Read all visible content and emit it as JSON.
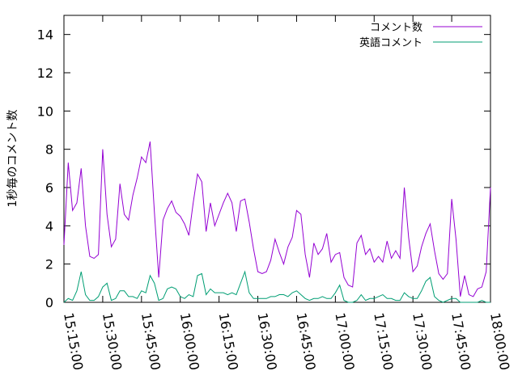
{
  "chart_data": {
    "type": "line",
    "title": "",
    "xlabel": "",
    "ylabel": "1秒毎のコメント数",
    "x_start": "15:15:00",
    "x_end": "18:00:00",
    "xticks": [
      "15:15:00",
      "15:30:00",
      "15:45:00",
      "16:00:00",
      "16:15:00",
      "16:30:00",
      "16:45:00",
      "17:00:00",
      "17:15:00",
      "17:30:00",
      "17:45:00",
      "18:00:00"
    ],
    "ylim": [
      0,
      15
    ],
    "yticks": [
      0,
      2,
      4,
      6,
      8,
      10,
      12,
      14
    ],
    "grid": false,
    "legend_position": "top-right",
    "series": [
      {
        "name": "コメント数",
        "color": "#9400d3",
        "values": [
          3.0,
          7.3,
          4.8,
          5.2,
          7.0,
          4.0,
          2.4,
          2.3,
          2.5,
          8.0,
          4.6,
          2.9,
          3.3,
          6.2,
          4.6,
          4.3,
          5.6,
          6.5,
          7.6,
          7.3,
          8.4,
          4.7,
          1.3,
          4.3,
          4.9,
          5.3,
          4.7,
          4.5,
          4.1,
          3.5,
          5.2,
          6.7,
          6.3,
          3.7,
          5.2,
          4.0,
          4.6,
          5.2,
          5.7,
          5.2,
          3.7,
          5.3,
          5.4,
          4.2,
          2.8,
          1.6,
          1.5,
          1.6,
          2.2,
          3.3,
          2.6,
          2.0,
          2.9,
          3.4,
          4.8,
          4.6,
          2.5,
          1.3,
          3.1,
          2.5,
          2.8,
          3.6,
          2.1,
          2.5,
          2.6,
          1.3,
          0.9,
          0.8,
          3.1,
          3.5,
          2.5,
          2.8,
          2.1,
          2.4,
          2.1,
          3.2,
          2.3,
          2.7,
          2.3,
          6.0,
          3.4,
          1.6,
          1.9,
          2.9,
          3.6,
          4.1,
          2.7,
          1.5,
          1.2,
          1.5,
          5.4,
          3.3,
          0.3,
          1.4,
          0.4,
          0.3,
          0.7,
          0.8,
          1.6,
          6.0
        ]
      },
      {
        "name": "英語コメント",
        "color": "#009e73",
        "values": [
          0.0,
          0.2,
          0.1,
          0.6,
          1.6,
          0.4,
          0.1,
          0.1,
          0.3,
          0.8,
          1.0,
          0.1,
          0.2,
          0.6,
          0.6,
          0.3,
          0.3,
          0.2,
          0.6,
          0.5,
          1.4,
          1.0,
          0.1,
          0.2,
          0.7,
          0.8,
          0.7,
          0.3,
          0.2,
          0.4,
          0.3,
          1.4,
          1.5,
          0.4,
          0.7,
          0.5,
          0.5,
          0.5,
          0.4,
          0.5,
          0.4,
          1.0,
          1.6,
          0.5,
          0.2,
          0.2,
          0.2,
          0.2,
          0.3,
          0.3,
          0.4,
          0.4,
          0.3,
          0.5,
          0.6,
          0.4,
          0.2,
          0.1,
          0.2,
          0.2,
          0.3,
          0.2,
          0.2,
          0.5,
          0.9,
          0.1,
          0.0,
          0.0,
          0.1,
          0.4,
          0.1,
          0.2,
          0.2,
          0.3,
          0.4,
          0.2,
          0.2,
          0.1,
          0.1,
          0.5,
          0.3,
          0.2,
          0.2,
          0.6,
          1.1,
          1.3,
          0.3,
          0.1,
          0.0,
          0.1,
          0.2,
          0.2,
          0.0,
          0.0,
          0.0,
          0.0,
          0.0,
          0.1,
          0.0,
          0.0
        ]
      }
    ]
  }
}
